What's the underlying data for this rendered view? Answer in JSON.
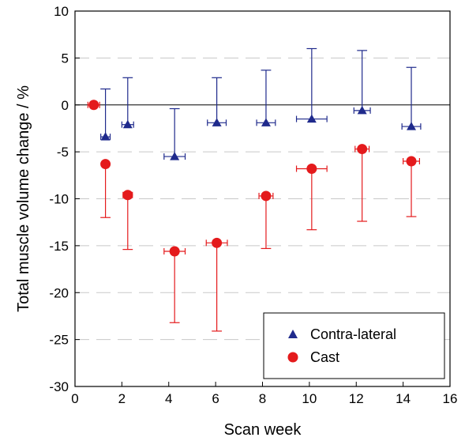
{
  "chart_data": {
    "type": "scatter",
    "xlabel": "Scan week",
    "ylabel": "Total muscle volume change / %",
    "xlim": [
      0,
      16
    ],
    "ylim": [
      -30,
      10
    ],
    "xticks": [
      0,
      2,
      4,
      6,
      8,
      10,
      12,
      14,
      16
    ],
    "yticks": [
      10,
      5,
      0,
      -5,
      -10,
      -15,
      -20,
      -25,
      -30
    ],
    "grid": "horizontal dashed",
    "legend_position": "bottom-right",
    "series": [
      {
        "name": "Contra-lateral",
        "marker": "triangle",
        "color": "#1f2a8c",
        "error_bars": "upper",
        "points": [
          {
            "x": 1.3,
            "y": -3.4,
            "xerr": 0.2,
            "err": 5.1
          },
          {
            "x": 2.25,
            "y": -2.1,
            "xerr": 0.25,
            "err": 5.0
          },
          {
            "x": 4.25,
            "y": -5.5,
            "xerr": 0.45,
            "err": 5.1
          },
          {
            "x": 6.05,
            "y": -1.9,
            "xerr": 0.4,
            "err": 4.8
          },
          {
            "x": 8.15,
            "y": -1.9,
            "xerr": 0.4,
            "err": 5.6
          },
          {
            "x": 10.1,
            "y": -1.5,
            "xerr": 0.65,
            "err": 7.5
          },
          {
            "x": 12.25,
            "y": -0.6,
            "xerr": 0.35,
            "err": 6.4
          },
          {
            "x": 14.35,
            "y": -2.3,
            "xerr": 0.4,
            "err": 6.3
          }
        ]
      },
      {
        "name": "Cast",
        "marker": "circle",
        "color": "#e41a1c",
        "error_bars": "lower",
        "points": [
          {
            "x": 0.8,
            "y": 0.0,
            "xerr": 0.25,
            "err": 0.0
          },
          {
            "x": 1.3,
            "y": -6.3,
            "xerr": 0.0,
            "err": 5.7
          },
          {
            "x": 2.25,
            "y": -9.6,
            "xerr": 0.2,
            "err": 5.8
          },
          {
            "x": 4.25,
            "y": -15.6,
            "xerr": 0.45,
            "err": 7.6
          },
          {
            "x": 6.05,
            "y": -14.7,
            "xerr": 0.45,
            "err": 9.4
          },
          {
            "x": 8.15,
            "y": -9.7,
            "xerr": 0.3,
            "err": 5.6
          },
          {
            "x": 10.1,
            "y": -6.8,
            "xerr": 0.65,
            "err": 6.5
          },
          {
            "x": 12.25,
            "y": -4.7,
            "xerr": 0.3,
            "err": 7.7
          },
          {
            "x": 14.35,
            "y": -6.0,
            "xerr": 0.35,
            "err": 5.9
          }
        ]
      }
    ]
  }
}
